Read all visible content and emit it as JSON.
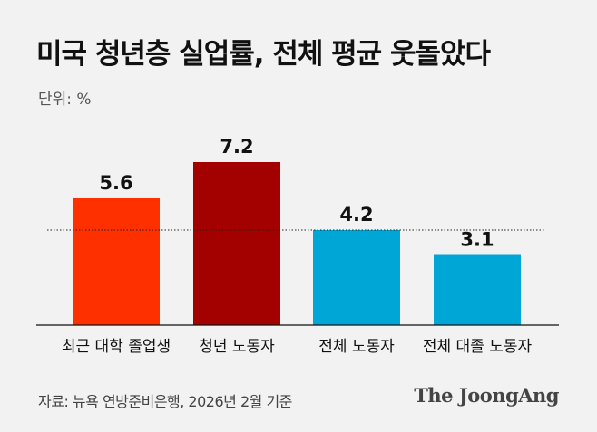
{
  "header": {
    "title": "미국 청년층 실업률, 전체 평균 웃돌았다",
    "unit": "단위: %"
  },
  "chart_data": {
    "type": "bar",
    "categories": [
      "최근 대학 졸업생",
      "청년 노동자",
      "전체 노동자",
      "전체 대졸 노동자"
    ],
    "values": [
      5.6,
      7.2,
      4.2,
      3.1
    ],
    "value_labels": [
      "5.6",
      "7.2",
      "4.2",
      "3.1"
    ],
    "colors": [
      "#ff3000",
      "#a30000",
      "#00a6d6",
      "#00a6d6"
    ],
    "reference_line": {
      "value": 4.2,
      "style": "dotted"
    },
    "ylim": [
      0,
      7.2
    ],
    "grid": false,
    "xlabel": "",
    "ylabel": ""
  },
  "footer": {
    "source": "자료: 뉴욕 연방준비은행, 2026년 2월 기준",
    "brand": "The JoongAng"
  }
}
